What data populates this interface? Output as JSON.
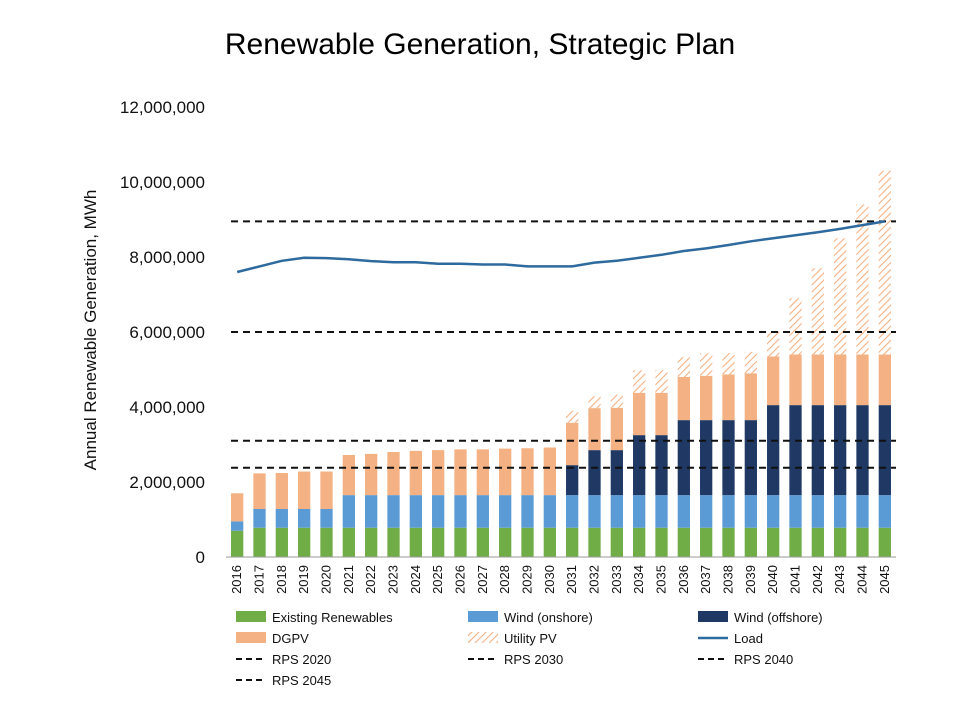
{
  "chart_data": {
    "type": "bar",
    "title": "Renewable Generation, Strategic Plan",
    "xlabel": "",
    "ylabel": "Annual Renewable Generation, MWh",
    "ylim": [
      0,
      12000000
    ],
    "yticks": [
      0,
      2000000,
      4000000,
      6000000,
      8000000,
      10000000,
      12000000
    ],
    "ytick_labels": [
      "0",
      "2,000,000",
      "4,000,000",
      "6,000,000",
      "8,000,000",
      "10,000,000",
      "12,000,000"
    ],
    "grid": false,
    "legend_position": "bottom",
    "stacked": true,
    "categories": [
      "2016",
      "2017",
      "2018",
      "2019",
      "2020",
      "2021",
      "2022",
      "2023",
      "2024",
      "2025",
      "2026",
      "2027",
      "2028",
      "2029",
      "2030",
      "2031",
      "2032",
      "2033",
      "2034",
      "2035",
      "2036",
      "2037",
      "2038",
      "2039",
      "2040",
      "2041",
      "2042",
      "2043",
      "2044",
      "2045"
    ],
    "series": [
      {
        "name": "Existing Renewables",
        "kind": "bar",
        "color": "#70ad47",
        "values": [
          700000,
          780000,
          780000,
          780000,
          780000,
          780000,
          780000,
          780000,
          780000,
          780000,
          780000,
          780000,
          780000,
          780000,
          780000,
          780000,
          780000,
          780000,
          780000,
          780000,
          780000,
          780000,
          780000,
          780000,
          780000,
          780000,
          780000,
          780000,
          780000,
          780000
        ]
      },
      {
        "name": "Wind (onshore)",
        "kind": "bar",
        "color": "#5b9bd5",
        "values": [
          250000,
          500000,
          500000,
          500000,
          500000,
          870000,
          870000,
          870000,
          870000,
          870000,
          870000,
          870000,
          870000,
          870000,
          870000,
          870000,
          870000,
          870000,
          870000,
          870000,
          870000,
          870000,
          870000,
          870000,
          870000,
          870000,
          870000,
          870000,
          870000,
          870000
        ]
      },
      {
        "name": "Wind (offshore)",
        "kind": "bar",
        "color": "#1f3864",
        "values": [
          0,
          0,
          0,
          0,
          0,
          0,
          0,
          0,
          0,
          0,
          0,
          0,
          0,
          0,
          0,
          800000,
          1200000,
          1200000,
          1600000,
          1600000,
          2000000,
          2000000,
          2000000,
          2000000,
          2400000,
          2400000,
          2400000,
          2400000,
          2400000,
          2400000
        ]
      },
      {
        "name": "DGPV",
        "kind": "bar",
        "color": "#f4b183",
        "values": [
          750000,
          950000,
          960000,
          1000000,
          1000000,
          1070000,
          1100000,
          1150000,
          1180000,
          1200000,
          1220000,
          1220000,
          1240000,
          1250000,
          1270000,
          1130000,
          1120000,
          1130000,
          1130000,
          1130000,
          1150000,
          1180000,
          1220000,
          1250000,
          1300000,
          1350000,
          1350000,
          1350000,
          1350000,
          1350000
        ]
      },
      {
        "name": "Utility PV",
        "kind": "bar-hatched",
        "color": "#f4b183",
        "values": [
          0,
          0,
          0,
          0,
          0,
          0,
          0,
          0,
          0,
          0,
          0,
          0,
          0,
          0,
          0,
          320000,
          320000,
          350000,
          600000,
          600000,
          530000,
          600000,
          570000,
          570000,
          670000,
          1500000,
          2300000,
          3100000,
          4000000,
          4900000
        ]
      },
      {
        "name": "Load",
        "kind": "line",
        "color": "#2e6a9e",
        "values": [
          7600000,
          7750000,
          7900000,
          7980000,
          7970000,
          7940000,
          7890000,
          7860000,
          7860000,
          7820000,
          7820000,
          7800000,
          7800000,
          7750000,
          7750000,
          7750000,
          7850000,
          7900000,
          7980000,
          8060000,
          8160000,
          8230000,
          8320000,
          8420000,
          8500000,
          8580000,
          8660000,
          8750000,
          8850000,
          8950000
        ]
      }
    ],
    "reference_lines": [
      {
        "name": "RPS 2020",
        "value": 2380000,
        "start": "2016",
        "color": "#111111"
      },
      {
        "name": "RPS 2030",
        "value": 3100000,
        "start": "2016",
        "color": "#111111"
      },
      {
        "name": "RPS 2040",
        "value": 6000000,
        "start": "2016",
        "color": "#111111"
      },
      {
        "name": "RPS 2045",
        "value": 8950000,
        "start": "2016",
        "color": "#111111"
      }
    ]
  }
}
